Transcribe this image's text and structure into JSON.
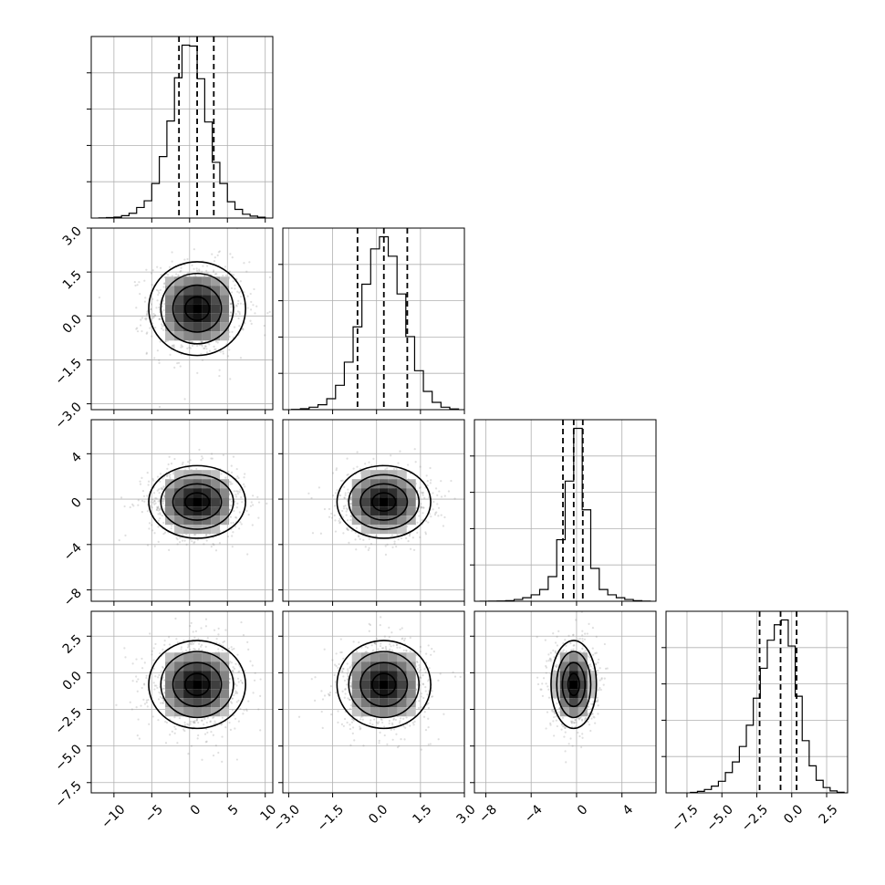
{
  "chart_data": {
    "type": "scatter",
    "kind": "corner",
    "grid": true,
    "variables": [
      {
        "xlim": [
          -13,
          11
        ],
        "ylim": [
          -13,
          11
        ],
        "xticks": [
          -10,
          -5,
          0,
          5,
          10
        ],
        "xtick_labels": [
          "−10",
          "−5",
          "0",
          "5",
          "10"
        ],
        "yticks": [
          -10,
          -5,
          0,
          5,
          10
        ],
        "ytick_labels": [
          "",
          "",
          "",
          "",
          ""
        ],
        "hist_edges": [
          -12,
          -11,
          -10,
          -9,
          -8,
          -7,
          -6,
          -5,
          -4,
          -3,
          -2,
          -1,
          0,
          1,
          2,
          3,
          4,
          5,
          6,
          7,
          8,
          9,
          10
        ],
        "hist_counts": [
          2,
          5,
          10,
          25,
          50,
          110,
          180,
          360,
          640,
          1010,
          1460,
          1800,
          1790,
          1450,
          1000,
          580,
          360,
          170,
          90,
          40,
          20,
          8
        ],
        "hist_max": 1800,
        "quantiles": [
          -1.4,
          1.0,
          3.2
        ]
      },
      {
        "xlim": [
          -3.2,
          3.0
        ],
        "ylim": [
          -3.2,
          3.0
        ],
        "xticks": [
          -3.0,
          -1.5,
          0.0,
          1.5,
          3.0
        ],
        "xtick_labels": [
          "−3.0",
          "−1.5",
          "0.0",
          "1.5",
          "3.0"
        ],
        "yticks": [
          -3.0,
          -1.5,
          0.0,
          1.5,
          3.0
        ],
        "ytick_labels": [
          "−3.0",
          "−1.5",
          "0.0",
          "1.5",
          "3.0"
        ],
        "hist_edges": [
          -2.9,
          -2.6,
          -2.3,
          -2.0,
          -1.7,
          -1.4,
          -1.1,
          -0.8,
          -0.5,
          -0.2,
          0.1,
          0.4,
          0.7,
          1.0,
          1.3,
          1.6,
          1.9,
          2.2,
          2.5,
          2.8
        ],
        "hist_counts": [
          2,
          8,
          20,
          40,
          90,
          200,
          390,
          680,
          1030,
          1320,
          1420,
          1260,
          950,
          600,
          320,
          150,
          60,
          20,
          6
        ],
        "hist_max": 1420,
        "quantiles": [
          -0.65,
          0.25,
          1.05
        ]
      },
      {
        "xlim": [
          -9,
          7
        ],
        "ylim": [
          -9,
          7
        ],
        "xticks": [
          -8,
          -4,
          0,
          4
        ],
        "xtick_labels": [
          "−8",
          "−4",
          "0",
          "4"
        ],
        "yticks": [
          -8,
          -4,
          0,
          4
        ],
        "ytick_labels": [
          "−8",
          "−4",
          "0",
          "4"
        ],
        "hist_edges": [
          -8.5,
          -7.75,
          -7.0,
          -6.25,
          -5.5,
          -4.75,
          -4.0,
          -3.25,
          -2.5,
          -1.75,
          -1.0,
          -0.25,
          0.5,
          1.25,
          2.0,
          2.75,
          3.5,
          4.25,
          5.0,
          5.75,
          6.5
        ],
        "hist_counts": [
          1,
          2,
          4,
          10,
          30,
          60,
          110,
          200,
          420,
          1050,
          2050,
          2950,
          1560,
          560,
          200,
          110,
          60,
          30,
          10,
          3
        ],
        "hist_max": 2950,
        "quantiles": [
          -1.2,
          -0.25,
          0.55
        ]
      },
      {
        "xlim": [
          -9,
          4
        ],
        "ylim": [
          -8.2,
          4.2
        ],
        "xticks": [
          -7.5,
          -5.0,
          -2.5,
          0.0,
          2.5
        ],
        "xtick_labels": [
          "−7.5",
          "−5.0",
          "−2.5",
          "0.0",
          "2.5"
        ],
        "yticks": [
          -7.5,
          -5.0,
          -2.5,
          0.0,
          2.5
        ],
        "ytick_labels": [
          "−7.5",
          "−5.0",
          "−2.5",
          "0.0",
          "2.5"
        ],
        "hist_edges": [
          -7.25,
          -6.75,
          -6.25,
          -5.75,
          -5.25,
          -4.75,
          -4.25,
          -3.75,
          -3.25,
          -2.75,
          -2.25,
          -1.75,
          -1.25,
          -0.75,
          -0.25,
          0.25,
          0.75,
          1.25,
          1.75,
          2.25,
          2.75,
          3.25,
          3.75
        ],
        "hist_counts": [
          5,
          15,
          35,
          70,
          120,
          210,
          320,
          480,
          700,
          980,
          1290,
          1580,
          1740,
          1790,
          1520,
          1000,
          540,
          280,
          130,
          55,
          20,
          6
        ],
        "hist_max": 1790,
        "quantiles": [
          -2.3,
          -0.8,
          0.35
        ]
      }
    ],
    "joint_means": [
      {
        "row": 1,
        "col": 0,
        "cx": 1.0,
        "cy": 0.25,
        "sx": 3.2,
        "sy": 0.8
      },
      {
        "row": 2,
        "col": 0,
        "cx": 1.0,
        "cy": -0.25,
        "sx": 3.2,
        "sy": 1.6
      },
      {
        "row": 2,
        "col": 1,
        "cx": 0.25,
        "cy": -0.25,
        "sx": 0.8,
        "sy": 1.6
      },
      {
        "row": 3,
        "col": 0,
        "cx": 1.0,
        "cy": -0.8,
        "sx": 3.2,
        "sy": 1.5
      },
      {
        "row": 3,
        "col": 1,
        "cx": 0.25,
        "cy": -0.8,
        "sx": 0.8,
        "sy": 1.5
      },
      {
        "row": 3,
        "col": 2,
        "cx": -0.25,
        "cy": -0.8,
        "sx": 1.0,
        "sy": 1.5
      }
    ],
    "contour_sigmas": [
      0.5,
      1.0,
      1.5,
      2.0
    ],
    "scatter_points_per_panel": 900
  }
}
